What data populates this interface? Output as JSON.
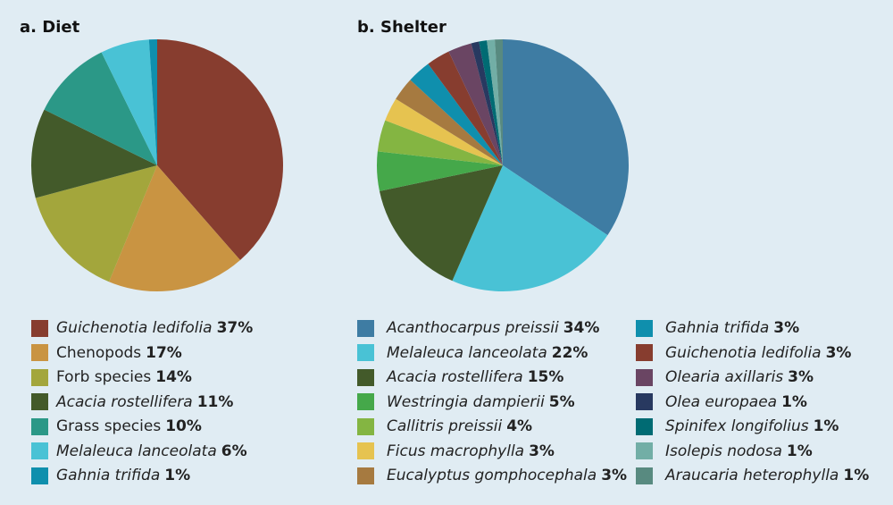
{
  "chart_data": [
    {
      "type": "pie",
      "title": "a. Diet",
      "slices": [
        {
          "label": "Guichenotia ledifolia",
          "value": 37,
          "italic": true,
          "color": "#873d2f"
        },
        {
          "label": "Chenopods",
          "value": 17,
          "italic": false,
          "color": "#c99442"
        },
        {
          "label": "Forb species",
          "value": 14,
          "italic": false,
          "color": "#a3a63c"
        },
        {
          "label": "Acacia rostellifera",
          "value": 11,
          "italic": true,
          "color": "#435a2a"
        },
        {
          "label": "Grass species",
          "value": 10,
          "italic": false,
          "color": "#2b9887"
        },
        {
          "label": "Melaleuca lanceolata",
          "value": 6,
          "italic": true,
          "color": "#49c2d5"
        },
        {
          "label": "Gahnia trifida",
          "value": 1,
          "italic": true,
          "color": "#0f8fad"
        }
      ]
    },
    {
      "type": "pie",
      "title": "b. Shelter",
      "slices": [
        {
          "label": "Acanthocarpus preissii",
          "value": 34,
          "italic": true,
          "color": "#3e7ca3"
        },
        {
          "label": "Melaleuca lanceolata",
          "value": 22,
          "italic": true,
          "color": "#49c2d5"
        },
        {
          "label": "Acacia rostellifera",
          "value": 15,
          "italic": true,
          "color": "#435a2a"
        },
        {
          "label": "Westringia dampierii",
          "value": 5,
          "italic": true,
          "color": "#45a84a"
        },
        {
          "label": "Callitris preissii",
          "value": 4,
          "italic": true,
          "color": "#84b542"
        },
        {
          "label": "Ficus macrophylla",
          "value": 3,
          "italic": true,
          "color": "#e6c350"
        },
        {
          "label": "Eucalyptus gomphocephala",
          "value": 3,
          "italic": true,
          "color": "#a67a40"
        },
        {
          "label": "Gahnia trifida",
          "value": 3,
          "italic": true,
          "color": "#0f8fad"
        },
        {
          "label": "Guichenotia ledifolia",
          "value": 3,
          "italic": true,
          "color": "#873d2f"
        },
        {
          "label": "Olearia axillaris",
          "value": 3,
          "italic": true,
          "color": "#6a4563"
        },
        {
          "label": "Olea europaea",
          "value": 1,
          "italic": true,
          "color": "#283960"
        },
        {
          "label": "Spinifex longifolius",
          "value": 1,
          "italic": true,
          "color": "#006b73"
        },
        {
          "label": "Isolepis nodosa",
          "value": 1,
          "italic": true,
          "color": "#72aea6"
        },
        {
          "label": "Araucaria heterophylla",
          "value": 1,
          "italic": true,
          "color": "#588a80"
        }
      ]
    }
  ]
}
